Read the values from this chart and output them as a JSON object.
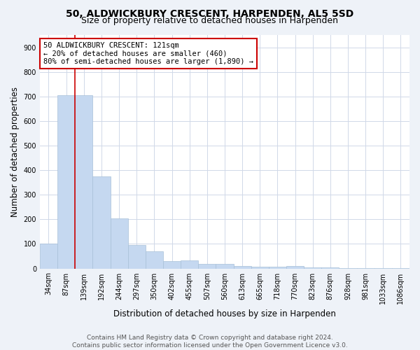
{
  "title": "50, ALDWICKBURY CRESCENT, HARPENDEN, AL5 5SD",
  "subtitle": "Size of property relative to detached houses in Harpenden",
  "xlabel": "Distribution of detached houses by size in Harpenden",
  "ylabel": "Number of detached properties",
  "footer_line1": "Contains HM Land Registry data © Crown copyright and database right 2024.",
  "footer_line2": "Contains public sector information licensed under the Open Government Licence v3.0.",
  "categories": [
    "34sqm",
    "87sqm",
    "139sqm",
    "192sqm",
    "244sqm",
    "297sqm",
    "350sqm",
    "402sqm",
    "455sqm",
    "507sqm",
    "560sqm",
    "613sqm",
    "665sqm",
    "718sqm",
    "770sqm",
    "823sqm",
    "876sqm",
    "928sqm",
    "981sqm",
    "1033sqm",
    "1086sqm"
  ],
  "values": [
    100,
    706,
    706,
    375,
    204,
    95,
    70,
    30,
    33,
    20,
    20,
    10,
    8,
    8,
    10,
    5,
    5,
    2,
    2,
    2,
    2
  ],
  "bar_color": "#c5d8f0",
  "bar_edge_color": "#a8c0d8",
  "vline_color": "#cc0000",
  "vline_x_data": 1.5,
  "annotation_text_line1": "50 ALDWICKBURY CRESCENT: 121sqm",
  "annotation_text_line2": "← 20% of detached houses are smaller (460)",
  "annotation_text_line3": "80% of semi-detached houses are larger (1,890) →",
  "ylim": [
    0,
    950
  ],
  "yticks": [
    0,
    100,
    200,
    300,
    400,
    500,
    600,
    700,
    800,
    900
  ],
  "background_color": "#eef2f8",
  "plot_background_color": "#ffffff",
  "title_fontsize": 10,
  "subtitle_fontsize": 9,
  "axis_label_fontsize": 8.5,
  "tick_fontsize": 7,
  "footer_fontsize": 6.5,
  "annotation_fontsize": 7.5
}
